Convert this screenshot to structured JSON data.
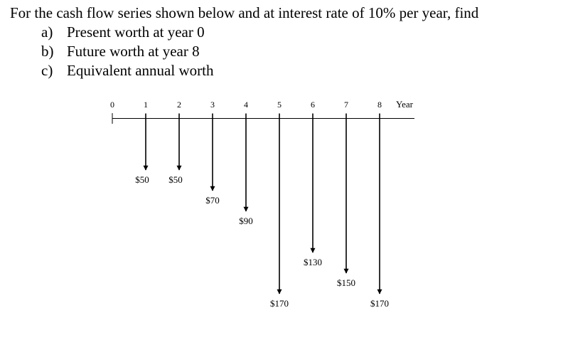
{
  "problem": {
    "statement": "For the cash flow series shown below and at interest rate of 10% per year, find",
    "parts": [
      {
        "letter": "a)",
        "text": "Present worth at year 0"
      },
      {
        "letter": "b)",
        "text": "Future worth at year 8"
      },
      {
        "letter": "c)",
        "text": "Equivalent annual worth"
      }
    ]
  },
  "diagram": {
    "axis_unit": "Year",
    "years": [
      "0",
      "1",
      "2",
      "3",
      "4",
      "5",
      "6",
      "7",
      "8"
    ],
    "cash_flows": [
      {
        "year": 1,
        "amount": 50,
        "label": "$50"
      },
      {
        "year": 2,
        "amount": 50,
        "label": "$50"
      },
      {
        "year": 3,
        "amount": 70,
        "label": "$70"
      },
      {
        "year": 4,
        "amount": 90,
        "label": "$90"
      },
      {
        "year": 5,
        "amount": 170,
        "label": "$170"
      },
      {
        "year": 6,
        "amount": 130,
        "label": "$130"
      },
      {
        "year": 7,
        "amount": 150,
        "label": "$150"
      },
      {
        "year": 8,
        "amount": 170,
        "label": "$170"
      }
    ],
    "flow_direction": "down",
    "line_color": "#000000"
  }
}
